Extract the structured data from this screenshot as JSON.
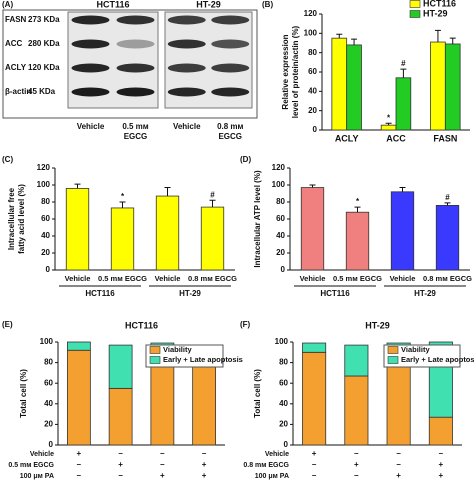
{
  "blot": {
    "panel": "(A)",
    "groups": [
      "HCT116",
      "HT-29"
    ],
    "rows": [
      {
        "protein": "FASN",
        "size": "273 KDa"
      },
      {
        "protein": "ACC",
        "size": "280 KDa"
      },
      {
        "protein": "ACLY",
        "size": "120 KDa"
      },
      {
        "protein": "β-actin",
        "size": "45 KDa"
      }
    ],
    "lanes": [
      [
        "Vehicle"
      ],
      [
        "0.5 mм",
        "EGCG"
      ],
      [
        "Vehicle"
      ],
      [
        "0.8 mм",
        "EGCG"
      ]
    ]
  },
  "chart_data": [
    {
      "type": "bar",
      "panel": "(B)",
      "ylabel": [
        "Relative expression",
        "level of protein/actin (%)"
      ],
      "categories": [
        "ACLY",
        "ACC",
        "FASN"
      ],
      "series": [
        {
          "name": "HCT116",
          "color": "#ffff00",
          "values": [
            95,
            5,
            91
          ],
          "errors": [
            4,
            2,
            12
          ],
          "marks": [
            null,
            "*",
            null
          ]
        },
        {
          "name": "HT-29",
          "color": "#22cc22",
          "values": [
            88,
            54,
            89
          ],
          "errors": [
            6,
            9,
            6
          ],
          "marks": [
            null,
            "#",
            null
          ]
        }
      ],
      "ylim": [
        0,
        120
      ],
      "yticks": [
        0,
        20,
        40,
        60,
        80,
        100,
        120
      ],
      "legend": "upper right"
    },
    {
      "type": "bar",
      "panel": "(C)",
      "ylabel": [
        "Intracellular free",
        "fatty acid level (%)"
      ],
      "categories": [
        "Vehicle",
        "0.5 mм EGCG",
        "Vehicle",
        "0.8 mм EGCG"
      ],
      "groups": [
        "HCT116",
        "HT-29"
      ],
      "series": [
        {
          "color": "#ffff00",
          "values": [
            96,
            73,
            87,
            74
          ],
          "errors": [
            5,
            7,
            10,
            8
          ],
          "marks": [
            null,
            "*",
            null,
            "#"
          ]
        }
      ],
      "ylim": [
        0,
        120
      ],
      "yticks": [
        0,
        20,
        40,
        60,
        80,
        100,
        120
      ]
    },
    {
      "type": "bar",
      "panel": "(D)",
      "ylabel": [
        "Intracellular ATP level (%)"
      ],
      "categories": [
        "Vehicle",
        "0.5 mм EGCG",
        "Vehicle",
        "0.8 mм EGCG"
      ],
      "groups": [
        "HCT116",
        "HT-29"
      ],
      "series": [
        {
          "colors": [
            "#f08080",
            "#f08080",
            "#3a3aff",
            "#3a3aff"
          ],
          "values": [
            97,
            68,
            92,
            76
          ],
          "errors": [
            3,
            6,
            5,
            3
          ],
          "marks": [
            null,
            "*",
            null,
            "#"
          ]
        }
      ],
      "ylim": [
        0,
        120
      ],
      "yticks": [
        0,
        20,
        40,
        60,
        80,
        100,
        120
      ]
    },
    {
      "type": "stacked_bar",
      "panel": "(E)",
      "title": "HCT116",
      "ylabel": [
        "Total cell (%)"
      ],
      "series": [
        {
          "name": "Viability",
          "color": "#f4a030",
          "values": [
            92,
            55,
            95,
            84
          ]
        },
        {
          "name": "Early + Late apoptosis",
          "color": "#40e0b0",
          "values": [
            8,
            42,
            4,
            13
          ]
        }
      ],
      "conditions": [
        {
          "name": "Vehicle",
          "values": [
            "+",
            "–",
            "–",
            "–"
          ]
        },
        {
          "name": "0.5 mм EGCG",
          "values": [
            "–",
            "+",
            "–",
            "+"
          ]
        },
        {
          "name": "100 μм PA",
          "values": [
            "–",
            "–",
            "+",
            "+"
          ]
        }
      ],
      "ylim": [
        0,
        100
      ],
      "yticks": [
        0,
        20,
        40,
        60,
        80,
        100
      ],
      "legend": "upper right"
    },
    {
      "type": "stacked_bar",
      "panel": "(F)",
      "title": "HT-29",
      "ylabel": [
        "Total cell (%)"
      ],
      "series": [
        {
          "name": "Viability",
          "color": "#f4a030",
          "values": [
            90,
            67,
            92,
            27
          ]
        },
        {
          "name": "Early + Late apoptosis",
          "color": "#40e0b0",
          "values": [
            9,
            30,
            7,
            73
          ]
        }
      ],
      "conditions": [
        {
          "name": "Vehicle",
          "values": [
            "+",
            "–",
            "–",
            "–"
          ]
        },
        {
          "name": "0.8 mм EGCG",
          "values": [
            "–",
            "+",
            "–",
            "+"
          ]
        },
        {
          "name": "100 μм PA",
          "values": [
            "–",
            "–",
            "+",
            "+"
          ]
        }
      ],
      "ylim": [
        0,
        100
      ],
      "yticks": [
        0,
        20,
        40,
        60,
        80,
        100
      ],
      "legend": "upper right"
    }
  ]
}
